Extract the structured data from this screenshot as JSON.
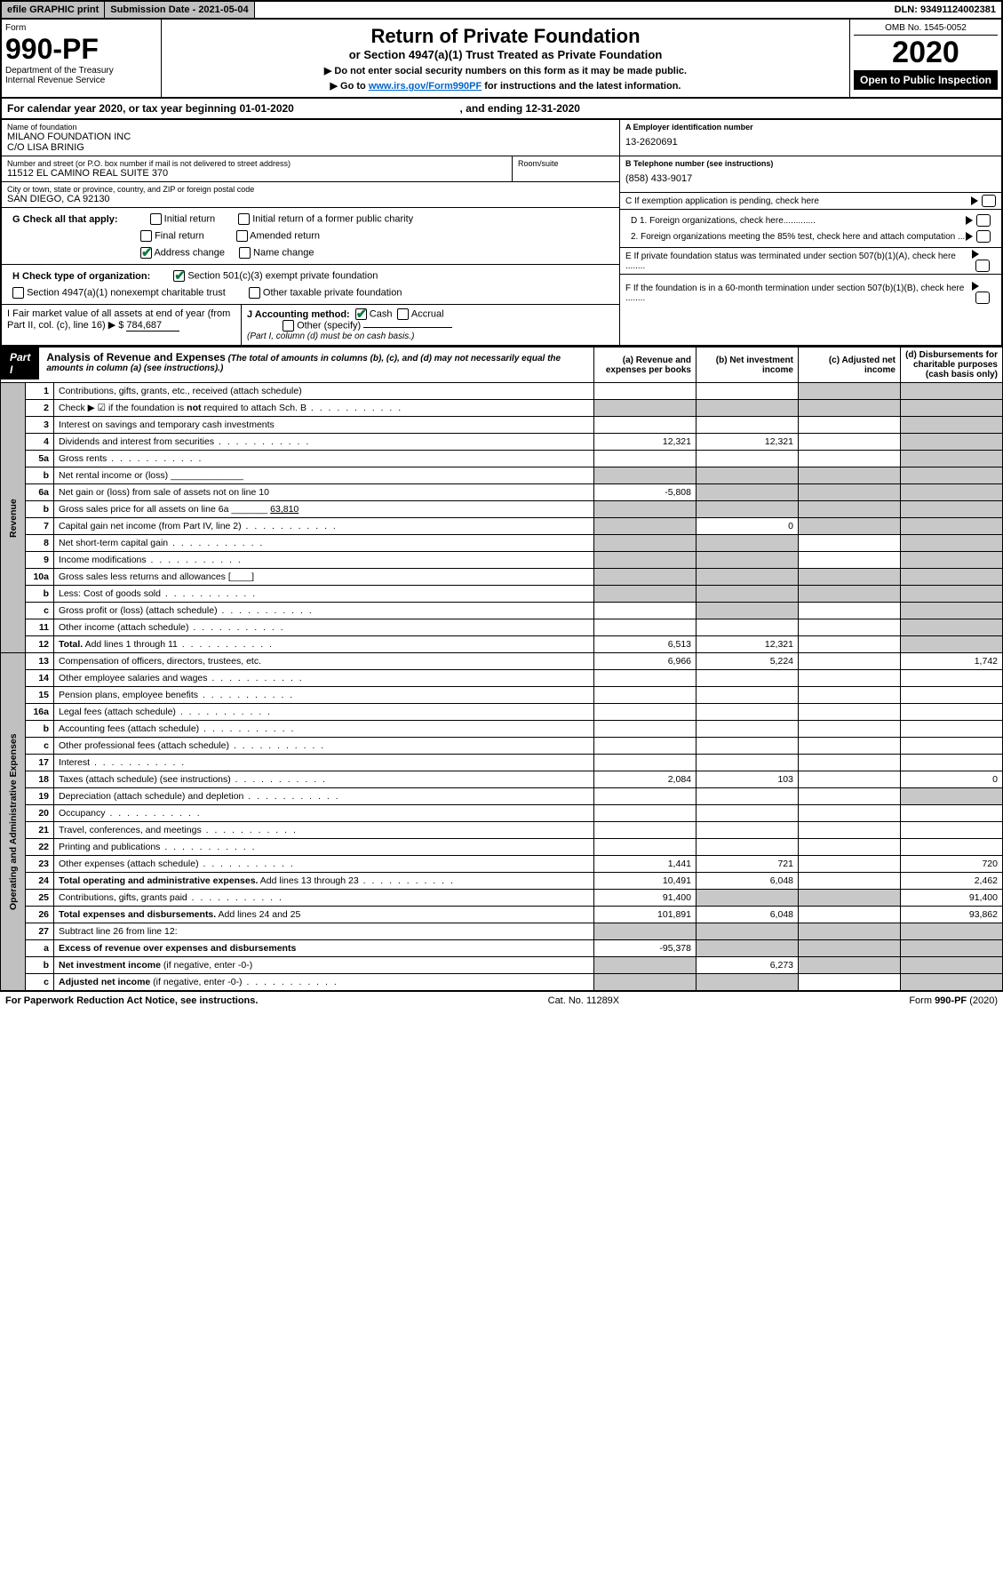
{
  "topbar": {
    "efile": "efile GRAPHIC print",
    "submission": "Submission Date - 2021-05-04",
    "dln": "DLN: 93491124002381"
  },
  "header": {
    "form_word": "Form",
    "form_num": "990-PF",
    "dept": "Department of the Treasury",
    "irs": "Internal Revenue Service",
    "title": "Return of Private Foundation",
    "subtitle": "or Section 4947(a)(1) Trust Treated as Private Foundation",
    "warn1": "▶ Do not enter social security numbers on this form as it may be made public.",
    "warn2_pre": "▶ Go to ",
    "warn2_link": "www.irs.gov/Form990PF",
    "warn2_post": " for instructions and the latest information.",
    "omb": "OMB No. 1545-0052",
    "year": "2020",
    "open": "Open to Public Inspection"
  },
  "cal": {
    "text_pre": "For calendar year 2020, or tax year beginning ",
    "begin": "01-01-2020",
    "mid": " , and ending ",
    "end": "12-31-2020"
  },
  "name": {
    "lbl": "Name of foundation",
    "l1": "MILANO FOUNDATION INC",
    "l2": "C/O LISA BRINIG"
  },
  "addr": {
    "lbl": "Number and street (or P.O. box number if mail is not delivered to street address)",
    "room_lbl": "Room/suite",
    "val": "11512 EL CAMINO REAL SUITE 370"
  },
  "city": {
    "lbl": "City or town, state or province, country, and ZIP or foreign postal code",
    "val": "SAN DIEGO, CA  92130"
  },
  "ein": {
    "lbl": "A Employer identification number",
    "val": "13-2620691"
  },
  "tel": {
    "lbl": "B Telephone number (see instructions)",
    "val": "(858) 433-9017"
  },
  "c": {
    "lbl": "C If exemption application is pending, check here"
  },
  "g": {
    "lbl": "G Check all that apply:",
    "initial": "Initial return",
    "initial_former": "Initial return of a former public charity",
    "final": "Final return",
    "amended": "Amended return",
    "addr_change": "Address change",
    "name_change": "Name change"
  },
  "h": {
    "lbl": "H Check type of organization:",
    "s501": "Section 501(c)(3) exempt private foundation",
    "s4947": "Section 4947(a)(1) nonexempt charitable trust",
    "other": "Other taxable private foundation"
  },
  "i": {
    "lbl": "I Fair market value of all assets at end of year (from Part II, col. (c), line 16) ▶ $",
    "val": "784,687"
  },
  "j": {
    "lbl": "J Accounting method:",
    "cash": "Cash",
    "accrual": "Accrual",
    "other": "Other (specify)",
    "note": "(Part I, column (d) must be on cash basis.)"
  },
  "d": {
    "d1": "D 1. Foreign organizations, check here.............",
    "d2": "2. Foreign organizations meeting the 85% test, check here and attach computation ...",
    "e": "E  If private foundation status was terminated under section 507(b)(1)(A), check here ........",
    "f": "F  If the foundation is in a 60-month termination under section 507(b)(1)(B), check here ........"
  },
  "part1": {
    "lbl": "Part I",
    "title": "Analysis of Revenue and Expenses",
    "note": " (The total of amounts in columns (b), (c), and (d) may not necessarily equal the amounts in column (a) (see instructions).)",
    "col_a": "(a)   Revenue and expenses per books",
    "col_b": "(b)  Net investment income",
    "col_c": "(c)  Adjusted net income",
    "col_d": "(d)  Disbursements for charitable purposes (cash basis only)"
  },
  "sections": {
    "revenue": "Revenue",
    "opex": "Operating and Administrative Expenses"
  },
  "rows": [
    {
      "n": "1",
      "d": "Contributions, gifts, grants, etc., received (attach schedule)",
      "a": "",
      "b": "",
      "cg": true,
      "dg": true
    },
    {
      "n": "2",
      "d": "Check ▶ ☑ if the foundation is <b>not</b> required to attach Sch. B",
      "dots": true,
      "ag": true,
      "bg": true,
      "cg": true,
      "dg": true
    },
    {
      "n": "3",
      "d": "Interest on savings and temporary cash investments",
      "a": "",
      "b": "",
      "c": "",
      "dg": true
    },
    {
      "n": "4",
      "d": "Dividends and interest from securities",
      "dots": true,
      "a": "12,321",
      "b": "12,321",
      "c": "",
      "dg": true
    },
    {
      "n": "5a",
      "d": "Gross rents",
      "dots": true,
      "a": "",
      "b": "",
      "c": "",
      "dg": true
    },
    {
      "n": "b",
      "d": "Net rental income or (loss)  ______________",
      "ag": true,
      "bg": true,
      "cg": true,
      "dg": true
    },
    {
      "n": "6a",
      "d": "Net gain or (loss) from sale of assets not on line 10",
      "a": "-5,808",
      "bg": true,
      "cg": true,
      "dg": true
    },
    {
      "n": "b",
      "d": "Gross sales price for all assets on line 6a _______ <u>63,810</u>",
      "ag": true,
      "bg": true,
      "cg": true,
      "dg": true
    },
    {
      "n": "7",
      "d": "Capital gain net income (from Part IV, line 2)",
      "dots": true,
      "ag": true,
      "b": "0",
      "cg": true,
      "dg": true
    },
    {
      "n": "8",
      "d": "Net short-term capital gain",
      "dots": true,
      "ag": true,
      "bg": true,
      "c": "",
      "dg": true
    },
    {
      "n": "9",
      "d": "Income modifications",
      "dots": true,
      "ag": true,
      "bg": true,
      "c": "",
      "dg": true
    },
    {
      "n": "10a",
      "d": "Gross sales less returns and allowances  [____]",
      "ag": true,
      "bg": true,
      "cg": true,
      "dg": true
    },
    {
      "n": "b",
      "d": "Less: Cost of goods sold",
      "dots": true,
      "extra": "[____]",
      "ag": true,
      "bg": true,
      "cg": true,
      "dg": true
    },
    {
      "n": "c",
      "d": "Gross profit or (loss) (attach schedule)",
      "dots": true,
      "a": "",
      "bg": true,
      "c": "",
      "dg": true
    },
    {
      "n": "11",
      "d": "Other income (attach schedule)",
      "dots": true,
      "a": "",
      "b": "",
      "c": "",
      "dg": true
    },
    {
      "n": "12",
      "d": "<b>Total.</b> Add lines 1 through 11",
      "dots": true,
      "a": "6,513",
      "b": "12,321",
      "c": "",
      "dg": true
    },
    {
      "n": "13",
      "d": "Compensation of officers, directors, trustees, etc.",
      "a": "6,966",
      "b": "5,224",
      "c": "",
      "dv": "1,742"
    },
    {
      "n": "14",
      "d": "Other employee salaries and wages",
      "dots": true,
      "a": "",
      "b": "",
      "c": "",
      "dv": ""
    },
    {
      "n": "15",
      "d": "Pension plans, employee benefits",
      "dots": true,
      "a": "",
      "b": "",
      "c": "",
      "dv": ""
    },
    {
      "n": "16a",
      "d": "Legal fees (attach schedule)",
      "dots": true,
      "a": "",
      "b": "",
      "c": "",
      "dv": ""
    },
    {
      "n": "b",
      "d": "Accounting fees (attach schedule)",
      "dots": true,
      "a": "",
      "b": "",
      "c": "",
      "dv": ""
    },
    {
      "n": "c",
      "d": "Other professional fees (attach schedule)",
      "dots": true,
      "a": "",
      "b": "",
      "c": "",
      "dv": ""
    },
    {
      "n": "17",
      "d": "Interest",
      "dots": true,
      "a": "",
      "b": "",
      "c": "",
      "dv": ""
    },
    {
      "n": "18",
      "d": "Taxes (attach schedule) (see instructions)",
      "dots": true,
      "a": "2,084",
      "b": "103",
      "c": "",
      "dv": "0"
    },
    {
      "n": "19",
      "d": "Depreciation (attach schedule) and depletion",
      "dots": true,
      "a": "",
      "b": "",
      "c": "",
      "dg": true
    },
    {
      "n": "20",
      "d": "Occupancy",
      "dots": true,
      "a": "",
      "b": "",
      "c": "",
      "dv": ""
    },
    {
      "n": "21",
      "d": "Travel, conferences, and meetings",
      "dots": true,
      "a": "",
      "b": "",
      "c": "",
      "dv": ""
    },
    {
      "n": "22",
      "d": "Printing and publications",
      "dots": true,
      "a": "",
      "b": "",
      "c": "",
      "dv": ""
    },
    {
      "n": "23",
      "d": "Other expenses (attach schedule)",
      "dots": true,
      "a": "1,441",
      "b": "721",
      "c": "",
      "dv": "720"
    },
    {
      "n": "24",
      "d": "<b>Total operating and administrative expenses.</b> Add lines 13 through 23",
      "dots": true,
      "a": "10,491",
      "b": "6,048",
      "c": "",
      "dv": "2,462"
    },
    {
      "n": "25",
      "d": "Contributions, gifts, grants paid",
      "dots": true,
      "a": "91,400",
      "bg": true,
      "cg": true,
      "dv": "91,400"
    },
    {
      "n": "26",
      "d": "<b>Total expenses and disbursements.</b> Add lines 24 and 25",
      "a": "101,891",
      "b": "6,048",
      "c": "",
      "dv": "93,862"
    },
    {
      "n": "27",
      "d": "Subtract line 26 from line 12:",
      "ag": true,
      "bg": true,
      "cg": true,
      "dg": true
    },
    {
      "n": "a",
      "d": "<b>Excess of revenue over expenses and disbursements</b>",
      "a": "-95,378",
      "bg": true,
      "cg": true,
      "dg": true
    },
    {
      "n": "b",
      "d": "<b>Net investment income</b> (if negative, enter -0-)",
      "ag": true,
      "b": "6,273",
      "cg": true,
      "dg": true
    },
    {
      "n": "c",
      "d": "<b>Adjusted net income</b> (if negative, enter -0-)",
      "dots": true,
      "ag": true,
      "bg": true,
      "c": "",
      "dg": true
    }
  ],
  "footer": {
    "left": "For Paperwork Reduction Act Notice, see instructions.",
    "mid": "Cat. No. 11289X",
    "right": "Form 990-PF (2020)"
  }
}
